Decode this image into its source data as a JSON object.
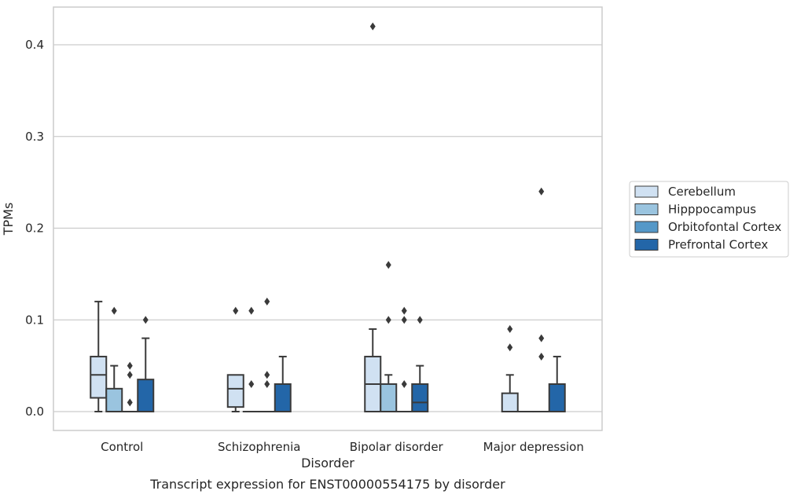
{
  "chart_data": {
    "type": "box",
    "caption": "Transcript expression for ENST00000554175 by disorder",
    "xlabel": "Disorder",
    "ylabel": "TPMs",
    "ylim": [
      -0.02,
      0.44
    ],
    "yticks": [
      0.0,
      0.1,
      0.2,
      0.3,
      0.4
    ],
    "ytick_labels": [
      "0.0",
      "0.1",
      "0.2",
      "0.3",
      "0.4"
    ],
    "grid": "horizontal",
    "legend_position": "right",
    "categories": [
      "Control",
      "Schizophrenia",
      "Bipolar disorder",
      "Major depression"
    ],
    "series": [
      {
        "name": "Cerebellum",
        "color": "#d0e1f2",
        "boxes": [
          {
            "whislo": 0.0,
            "q1": 0.015,
            "med": 0.04,
            "q3": 0.06,
            "whishi": 0.12,
            "fliers": []
          },
          {
            "whislo": 0.0,
            "q1": 0.005,
            "med": 0.025,
            "q3": 0.04,
            "whishi": 0.04,
            "fliers": [
              0.11
            ]
          },
          {
            "whislo": 0.0,
            "q1": 0.0,
            "med": 0.03,
            "q3": 0.06,
            "whishi": 0.09,
            "fliers": [
              0.42
            ]
          },
          {
            "whislo": 0.0,
            "q1": 0.0,
            "med": 0.0,
            "q3": 0.02,
            "whishi": 0.04,
            "fliers": [
              0.07,
              0.09
            ]
          }
        ]
      },
      {
        "name": "Hipppocampus",
        "color": "#9ac4df",
        "boxes": [
          {
            "whislo": 0.0,
            "q1": 0.0,
            "med": 0.0,
            "q3": 0.025,
            "whishi": 0.05,
            "fliers": [
              0.11
            ]
          },
          {
            "whislo": 0.0,
            "q1": 0.0,
            "med": 0.0,
            "q3": 0.0,
            "whishi": 0.0,
            "fliers": [
              0.03,
              0.11
            ]
          },
          {
            "whislo": 0.0,
            "q1": 0.0,
            "med": 0.0,
            "q3": 0.03,
            "whishi": 0.04,
            "fliers": [
              0.1,
              0.16
            ]
          },
          {
            "whislo": 0.0,
            "q1": 0.0,
            "med": 0.0,
            "q3": 0.0,
            "whishi": 0.0,
            "fliers": []
          }
        ]
      },
      {
        "name": "Orbitofontal Cortex",
        "color": "#5598c8",
        "boxes": [
          {
            "whislo": 0.0,
            "q1": 0.0,
            "med": 0.0,
            "q3": 0.0,
            "whishi": 0.0,
            "fliers": [
              0.01,
              0.04,
              0.05
            ]
          },
          {
            "whislo": 0.0,
            "q1": 0.0,
            "med": 0.0,
            "q3": 0.0,
            "whishi": 0.0,
            "fliers": [
              0.03,
              0.04,
              0.12
            ]
          },
          {
            "whislo": 0.0,
            "q1": 0.0,
            "med": 0.0,
            "q3": 0.0,
            "whishi": 0.0,
            "fliers": [
              0.03,
              0.1,
              0.11
            ]
          },
          {
            "whislo": 0.0,
            "q1": 0.0,
            "med": 0.0,
            "q3": 0.0,
            "whishi": 0.0,
            "fliers": [
              0.06,
              0.08,
              0.24
            ]
          }
        ]
      },
      {
        "name": "Prefrontal Cortex",
        "color": "#2366a8",
        "boxes": [
          {
            "whislo": 0.0,
            "q1": 0.0,
            "med": 0.0,
            "q3": 0.035,
            "whishi": 0.08,
            "fliers": [
              0.1
            ]
          },
          {
            "whislo": 0.0,
            "q1": 0.0,
            "med": 0.0,
            "q3": 0.03,
            "whishi": 0.06,
            "fliers": []
          },
          {
            "whislo": 0.0,
            "q1": 0.0,
            "med": 0.01,
            "q3": 0.03,
            "whishi": 0.05,
            "fliers": [
              0.1
            ]
          },
          {
            "whislo": 0.0,
            "q1": 0.0,
            "med": 0.0,
            "q3": 0.03,
            "whishi": 0.06,
            "fliers": []
          }
        ]
      }
    ]
  }
}
